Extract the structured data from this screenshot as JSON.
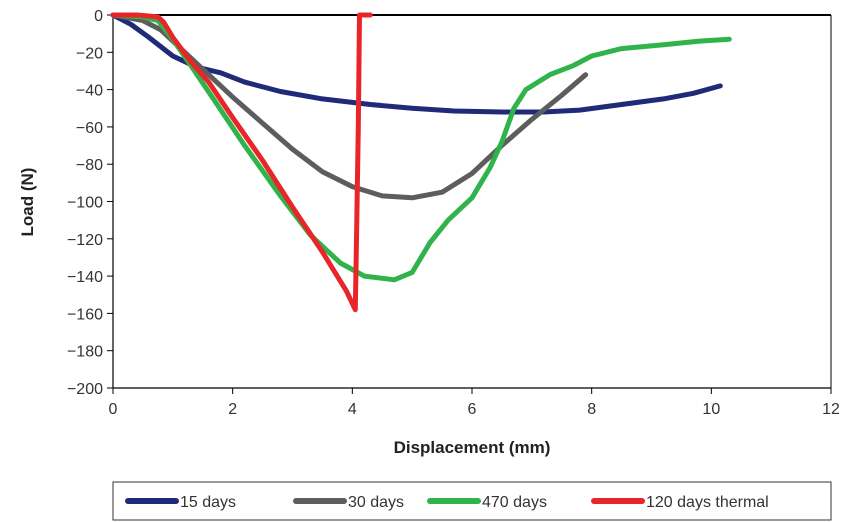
{
  "chart_data": {
    "type": "line",
    "title": "",
    "xlabel": "Displacement (mm)",
    "ylabel": "Load (N)",
    "xlim": [
      0,
      12
    ],
    "ylim": [
      -200,
      0
    ],
    "x_ticks": [
      "0",
      "2",
      "4",
      "6",
      "8",
      "10",
      "12"
    ],
    "y_ticks": [
      "0",
      "−20",
      "−40",
      "−60",
      "−80",
      "−100",
      "−120",
      "−140",
      "−160",
      "−180",
      "−200"
    ],
    "grid": false,
    "legend_position": "bottom",
    "series": [
      {
        "name": "15 days",
        "color": "#1f2a78",
        "points": [
          [
            0,
            0
          ],
          [
            0.3,
            -5
          ],
          [
            0.6,
            -12
          ],
          [
            1.0,
            -22
          ],
          [
            1.4,
            -28
          ],
          [
            1.8,
            -31
          ],
          [
            2.2,
            -36
          ],
          [
            2.8,
            -41
          ],
          [
            3.5,
            -45
          ],
          [
            4.3,
            -48
          ],
          [
            5.0,
            -50
          ],
          [
            5.7,
            -51.5
          ],
          [
            6.5,
            -52
          ],
          [
            7.2,
            -52
          ],
          [
            7.8,
            -51
          ],
          [
            8.5,
            -48
          ],
          [
            9.2,
            -45
          ],
          [
            9.7,
            -42
          ],
          [
            10.15,
            -38
          ]
        ]
      },
      {
        "name": "30 days",
        "color": "#5d5d5d",
        "points": [
          [
            0,
            0
          ],
          [
            0.5,
            -3
          ],
          [
            0.8,
            -8
          ],
          [
            1.2,
            -20
          ],
          [
            1.6,
            -32
          ],
          [
            2.0,
            -44
          ],
          [
            2.5,
            -58
          ],
          [
            3.0,
            -72
          ],
          [
            3.5,
            -84
          ],
          [
            4.0,
            -92
          ],
          [
            4.5,
            -97
          ],
          [
            5.0,
            -98
          ],
          [
            5.5,
            -95
          ],
          [
            6.0,
            -85
          ],
          [
            6.5,
            -70
          ],
          [
            7.0,
            -56
          ],
          [
            7.5,
            -43
          ],
          [
            7.9,
            -32
          ]
        ]
      },
      {
        "name": "470 days",
        "color": "#2fb34a",
        "points": [
          [
            0,
            0
          ],
          [
            0.5,
            -1
          ],
          [
            0.75,
            -3
          ],
          [
            1.0,
            -13
          ],
          [
            1.3,
            -27
          ],
          [
            1.7,
            -46
          ],
          [
            2.2,
            -70
          ],
          [
            2.8,
            -97
          ],
          [
            3.3,
            -118
          ],
          [
            3.8,
            -133
          ],
          [
            4.2,
            -140
          ],
          [
            4.7,
            -142
          ],
          [
            5.0,
            -138
          ],
          [
            5.3,
            -122
          ],
          [
            5.6,
            -110
          ],
          [
            6.0,
            -98
          ],
          [
            6.3,
            -82
          ],
          [
            6.5,
            -68
          ],
          [
            6.7,
            -50
          ],
          [
            6.9,
            -40
          ],
          [
            7.3,
            -32
          ],
          [
            7.7,
            -27
          ],
          [
            8.0,
            -22
          ],
          [
            8.5,
            -18
          ],
          [
            9.2,
            -16
          ],
          [
            9.8,
            -14
          ],
          [
            10.3,
            -13
          ]
        ]
      },
      {
        "name": "120 days thermal",
        "color": "#e8262a",
        "points": [
          [
            0,
            0
          ],
          [
            0.4,
            0
          ],
          [
            0.75,
            -1
          ],
          [
            0.85,
            -4
          ],
          [
            1.0,
            -12
          ],
          [
            1.3,
            -25
          ],
          [
            1.6,
            -36
          ],
          [
            2.0,
            -55
          ],
          [
            2.5,
            -78
          ],
          [
            3.0,
            -103
          ],
          [
            3.5,
            -127
          ],
          [
            3.9,
            -148
          ],
          [
            4.05,
            -158
          ],
          [
            4.07,
            -120
          ],
          [
            4.1,
            -60
          ],
          [
            4.12,
            0
          ],
          [
            4.3,
            0
          ]
        ]
      }
    ]
  }
}
